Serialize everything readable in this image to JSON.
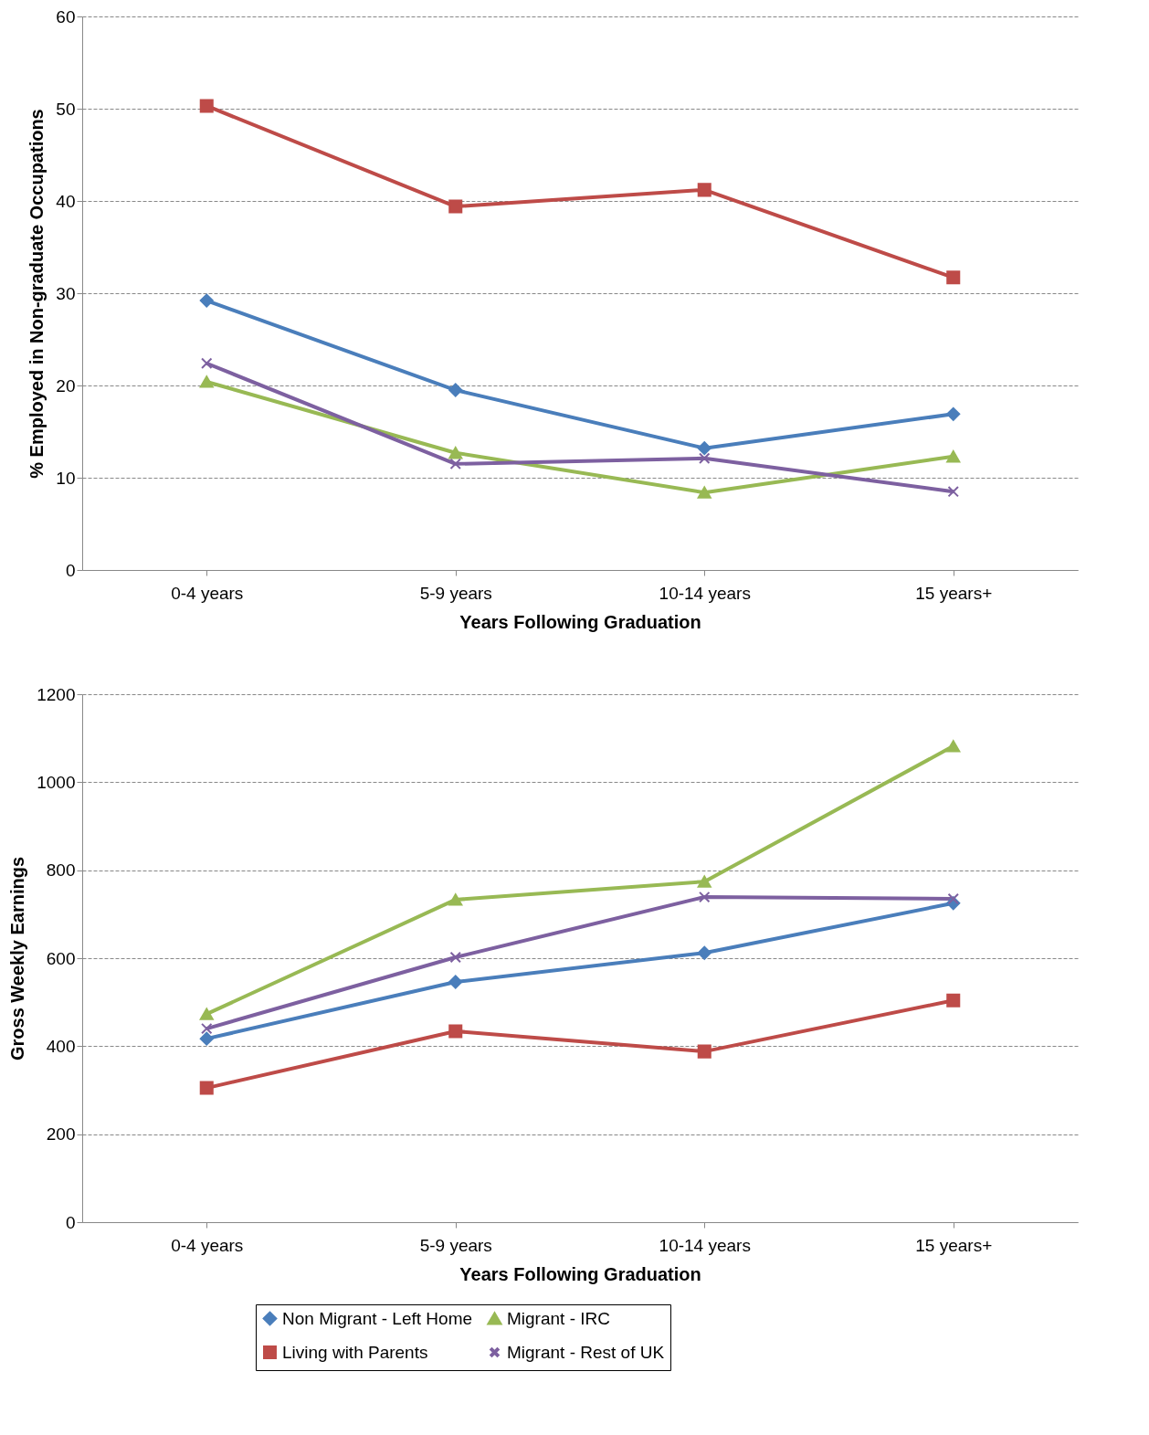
{
  "chart_data": [
    {
      "type": "line",
      "ylabel": "% Employed in Non-graduate Occupations",
      "xlabel": "Years Following Graduation",
      "categories": [
        "0-4 years",
        "5-9 years",
        "10-14 years",
        "15 years+"
      ],
      "ylim": [
        0,
        60
      ],
      "yticks": [
        0,
        10,
        20,
        30,
        40,
        50,
        60
      ],
      "grid": "y",
      "legend": false,
      "series": [
        {
          "color": "#4a7ebb",
          "marker": "diamond",
          "values": [
            29.2,
            19.5,
            13.2,
            16.9
          ]
        },
        {
          "color": "#be4b48",
          "marker": "square",
          "values": [
            50.3,
            39.4,
            41.2,
            31.7
          ]
        },
        {
          "color": "#98b954",
          "marker": "triangle",
          "values": [
            20.4,
            12.7,
            8.4,
            12.3
          ]
        },
        {
          "color": "#7d60a0",
          "marker": "cross",
          "values": [
            22.4,
            11.5,
            12.1,
            8.5
          ]
        }
      ]
    },
    {
      "type": "line",
      "ylabel": "Gross Weekly Earnings",
      "xlabel": "Years Following Graduation",
      "categories": [
        "0-4 years",
        "5-9 years",
        "10-14 years",
        "15 years+"
      ],
      "ylim": [
        0,
        1200
      ],
      "yticks": [
        0,
        200,
        400,
        600,
        800,
        1000,
        1200
      ],
      "grid": "y",
      "legend": "bottom",
      "series": [
        {
          "name": "Non Migrant - Left Home",
          "color": "#4a7ebb",
          "marker": "diamond",
          "values": [
            417,
            546,
            612,
            725
          ]
        },
        {
          "name": "Living with Parents",
          "color": "#be4b48",
          "marker": "square",
          "values": [
            305,
            434,
            388,
            504
          ]
        },
        {
          "name": "Migrant - IRC",
          "color": "#98b954",
          "marker": "triangle",
          "values": [
            473,
            733,
            774,
            1082
          ]
        },
        {
          "name": "Migrant - Rest of UK",
          "color": "#7d60a0",
          "marker": "cross",
          "values": [
            440,
            602,
            739,
            735
          ]
        }
      ]
    }
  ]
}
